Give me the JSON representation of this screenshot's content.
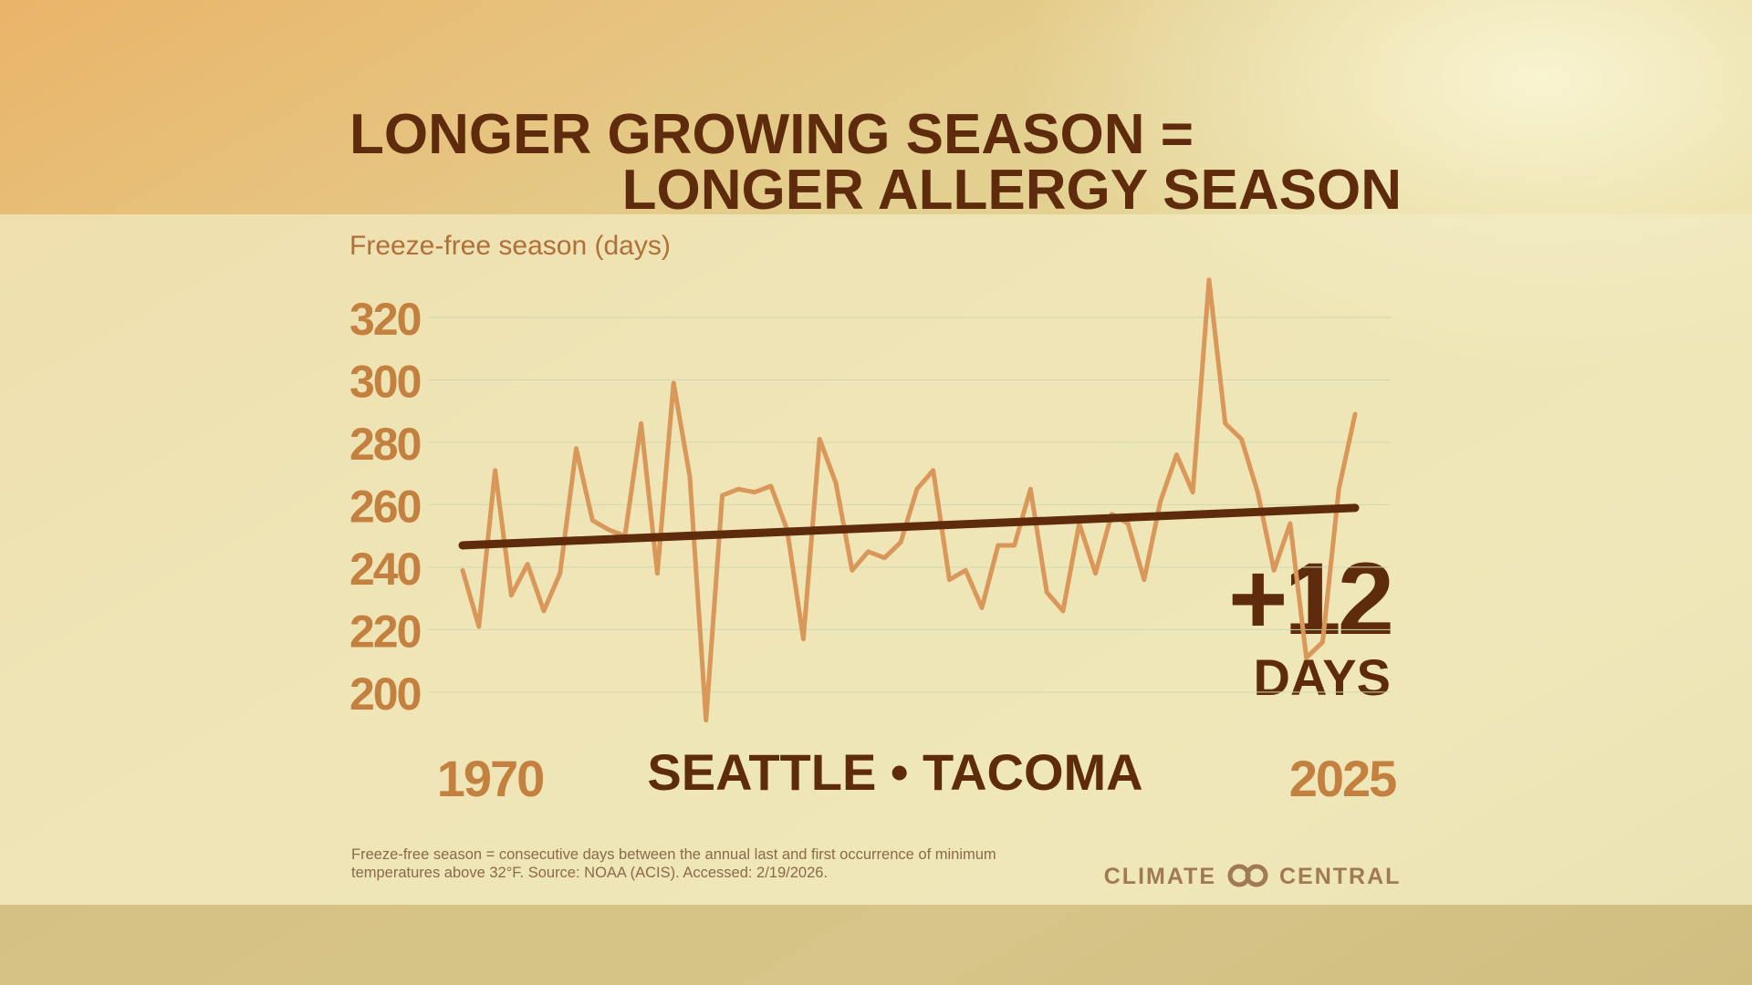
{
  "chart_data": {
    "type": "line",
    "title_lines": [
      "LONGER GROWING SEASON =",
      "LONGER ALLERGY SEASON"
    ],
    "y_label": "Freeze-free season (days)",
    "location": "SEATTLE • TACOMA",
    "annotation": {
      "value": "+12",
      "unit": "DAYS"
    },
    "footnote_lines": [
      "Freeze-free season = consecutive days between the annual last and first occurrence of minimum",
      "temperatures above 32°F. Source: NOAA (ACIS). Accessed: 2/19/2026."
    ],
    "brand": [
      "CLIMATE",
      "CENTRAL"
    ],
    "x": [
      1970,
      1971,
      1972,
      1973,
      1974,
      1975,
      1976,
      1977,
      1978,
      1979,
      1980,
      1981,
      1982,
      1983,
      1984,
      1985,
      1986,
      1987,
      1988,
      1989,
      1990,
      1991,
      1992,
      1993,
      1994,
      1995,
      1996,
      1997,
      1998,
      1999,
      2000,
      2001,
      2002,
      2003,
      2004,
      2005,
      2006,
      2007,
      2008,
      2009,
      2010,
      2011,
      2012,
      2013,
      2014,
      2015,
      2016,
      2017,
      2018,
      2019,
      2020,
      2021,
      2022,
      2023,
      2024,
      2025
    ],
    "values": [
      239,
      221,
      271,
      231,
      241,
      226,
      238,
      278,
      255,
      252,
      250,
      286,
      238,
      299,
      269,
      191,
      263,
      265,
      264,
      266,
      252,
      217,
      281,
      267,
      239,
      245,
      243,
      248,
      265,
      271,
      236,
      239,
      227,
      247,
      247,
      265,
      232,
      226,
      254,
      238,
      257,
      254,
      236,
      261,
      276,
      264,
      332,
      286,
      281,
      264,
      239,
      254,
      211,
      216,
      265,
      289
    ],
    "color": "#d9975a",
    "trend": {
      "x": [
        1970,
        2025
      ],
      "values": [
        247,
        259
      ],
      "color": "#5e2b0c"
    },
    "xlim": [
      1970,
      2025
    ],
    "xticks": [
      1970,
      2025
    ],
    "ylim": [
      188,
      334
    ],
    "yticks": [
      200,
      220,
      240,
      260,
      280,
      300,
      320
    ],
    "grid": true
  }
}
